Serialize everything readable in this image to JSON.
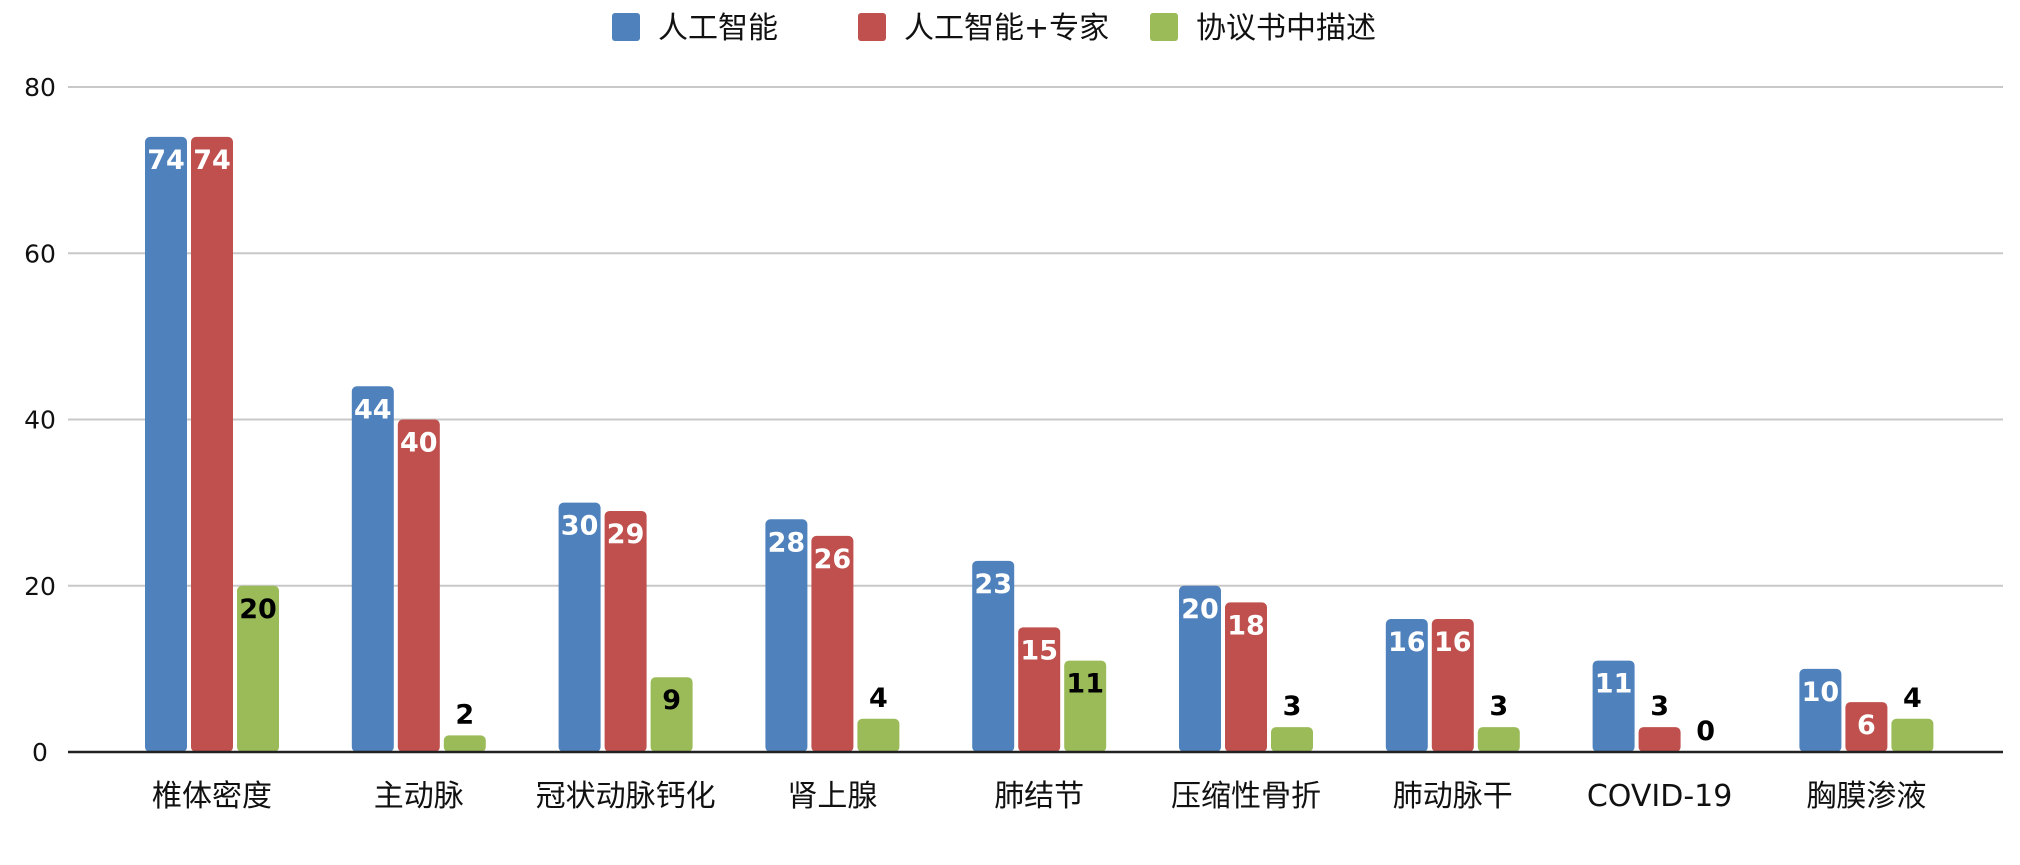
{
  "chart_data": {
    "type": "bar",
    "title": "",
    "xlabel": "",
    "ylabel": "",
    "ylim": [
      0,
      80
    ],
    "yticks": [
      0,
      20,
      40,
      60,
      80
    ],
    "grid": true,
    "legend_position": "top-center",
    "categories": [
      "椎体密度",
      "主动脉",
      "冠状动脉钙化",
      "肾上腺",
      "肺结节",
      "压缩性骨折",
      "肺动脉干",
      "COVID-19",
      "胸膜渗液"
    ],
    "series": [
      {
        "name": "人工智能",
        "color": "#4F81BD",
        "values": [
          74,
          44,
          30,
          28,
          23,
          20,
          16,
          11,
          10
        ]
      },
      {
        "name": "人工智能+专家",
        "color": "#C0504D",
        "values": [
          74,
          40,
          29,
          26,
          15,
          18,
          16,
          3,
          6
        ]
      },
      {
        "name": "协议书中描述",
        "color": "#9BBB59",
        "values": [
          20,
          2,
          9,
          4,
          11,
          3,
          3,
          0,
          4
        ]
      }
    ]
  }
}
